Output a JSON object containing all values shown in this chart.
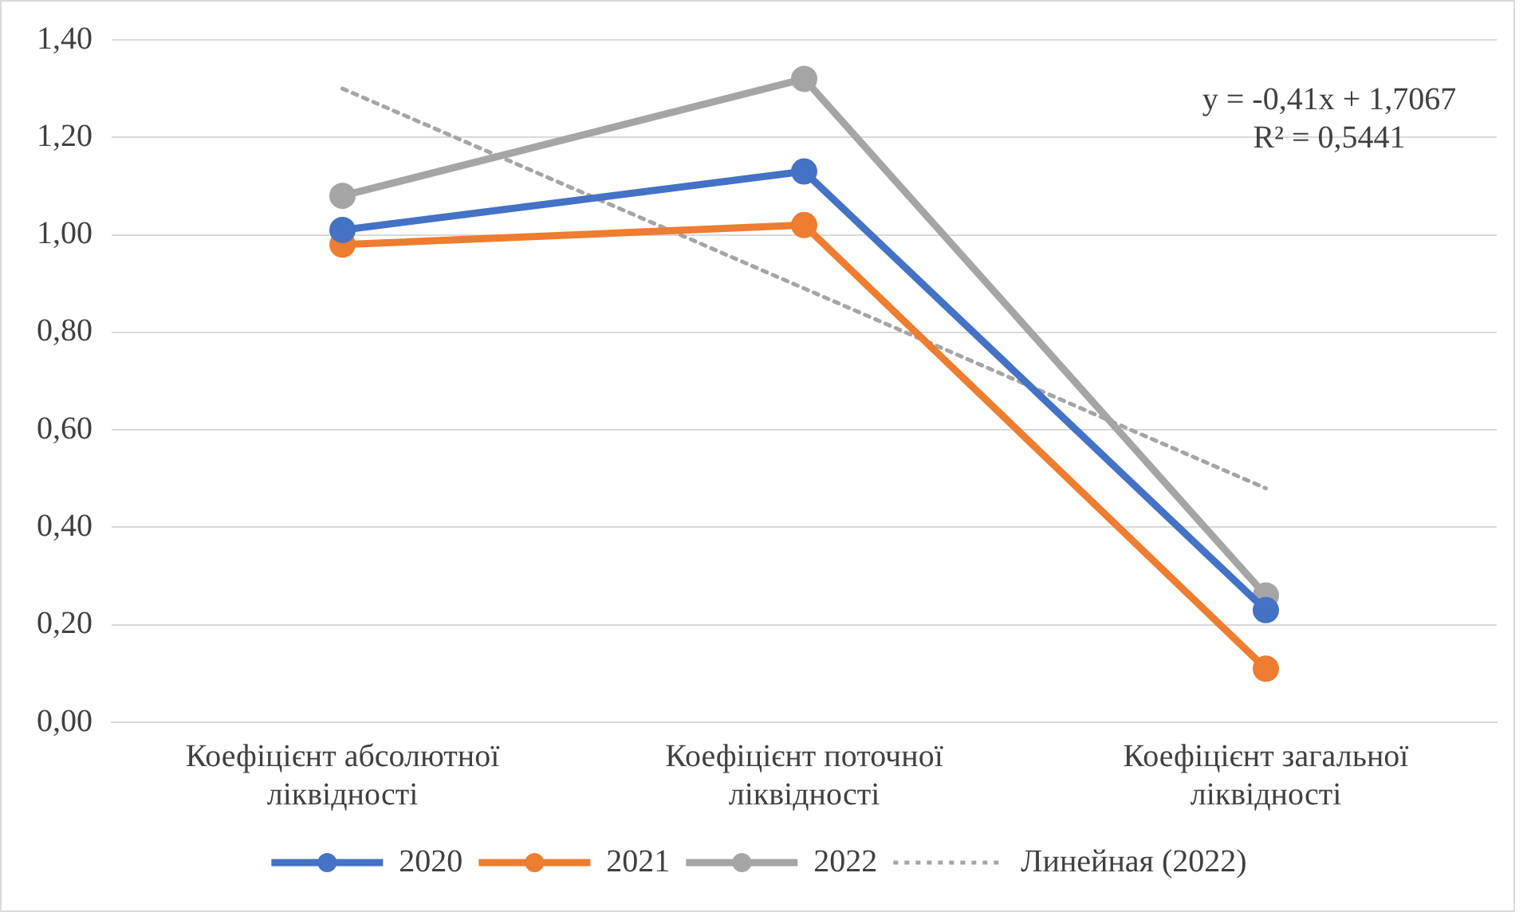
{
  "chart_data": {
    "type": "line",
    "categories": [
      "Коефіцієнт абсолютної ліквідності",
      "Коефіцієнт поточної ліквідності",
      "Коефіцієнт загальної ліквідності"
    ],
    "series": [
      {
        "name": "2020",
        "color": "#4472c4",
        "values": [
          1.01,
          1.13,
          0.23
        ]
      },
      {
        "name": "2021",
        "color": "#ed7d31",
        "values": [
          0.98,
          1.02,
          0.11
        ]
      },
      {
        "name": "2022",
        "color": "#a5a5a5",
        "values": [
          1.08,
          1.32,
          0.26
        ]
      },
      {
        "name": "Линейная (2022)",
        "color": "#a5a5a5",
        "values": [
          1.3,
          0.89,
          0.48
        ],
        "line_style": "dotted",
        "marker": "none"
      }
    ],
    "ylim": [
      0,
      1.4
    ],
    "yticks": [
      {
        "value": 0,
        "label": "0,00"
      },
      {
        "value": 0.2,
        "label": "0,20"
      },
      {
        "value": 0.4,
        "label": "0,40"
      },
      {
        "value": 0.6,
        "label": "0,60"
      },
      {
        "value": 0.8,
        "label": "0,80"
      },
      {
        "value": 1.0,
        "label": "1,00"
      },
      {
        "value": 1.2,
        "label": "1,20"
      },
      {
        "value": 1.4,
        "label": "1,40"
      }
    ],
    "grid": "y",
    "legend": "bottom",
    "marker": "circle",
    "line_style": "solid",
    "annotations": [
      "y = -0,41x + 1,7067",
      "R² = 0,5441"
    ]
  }
}
